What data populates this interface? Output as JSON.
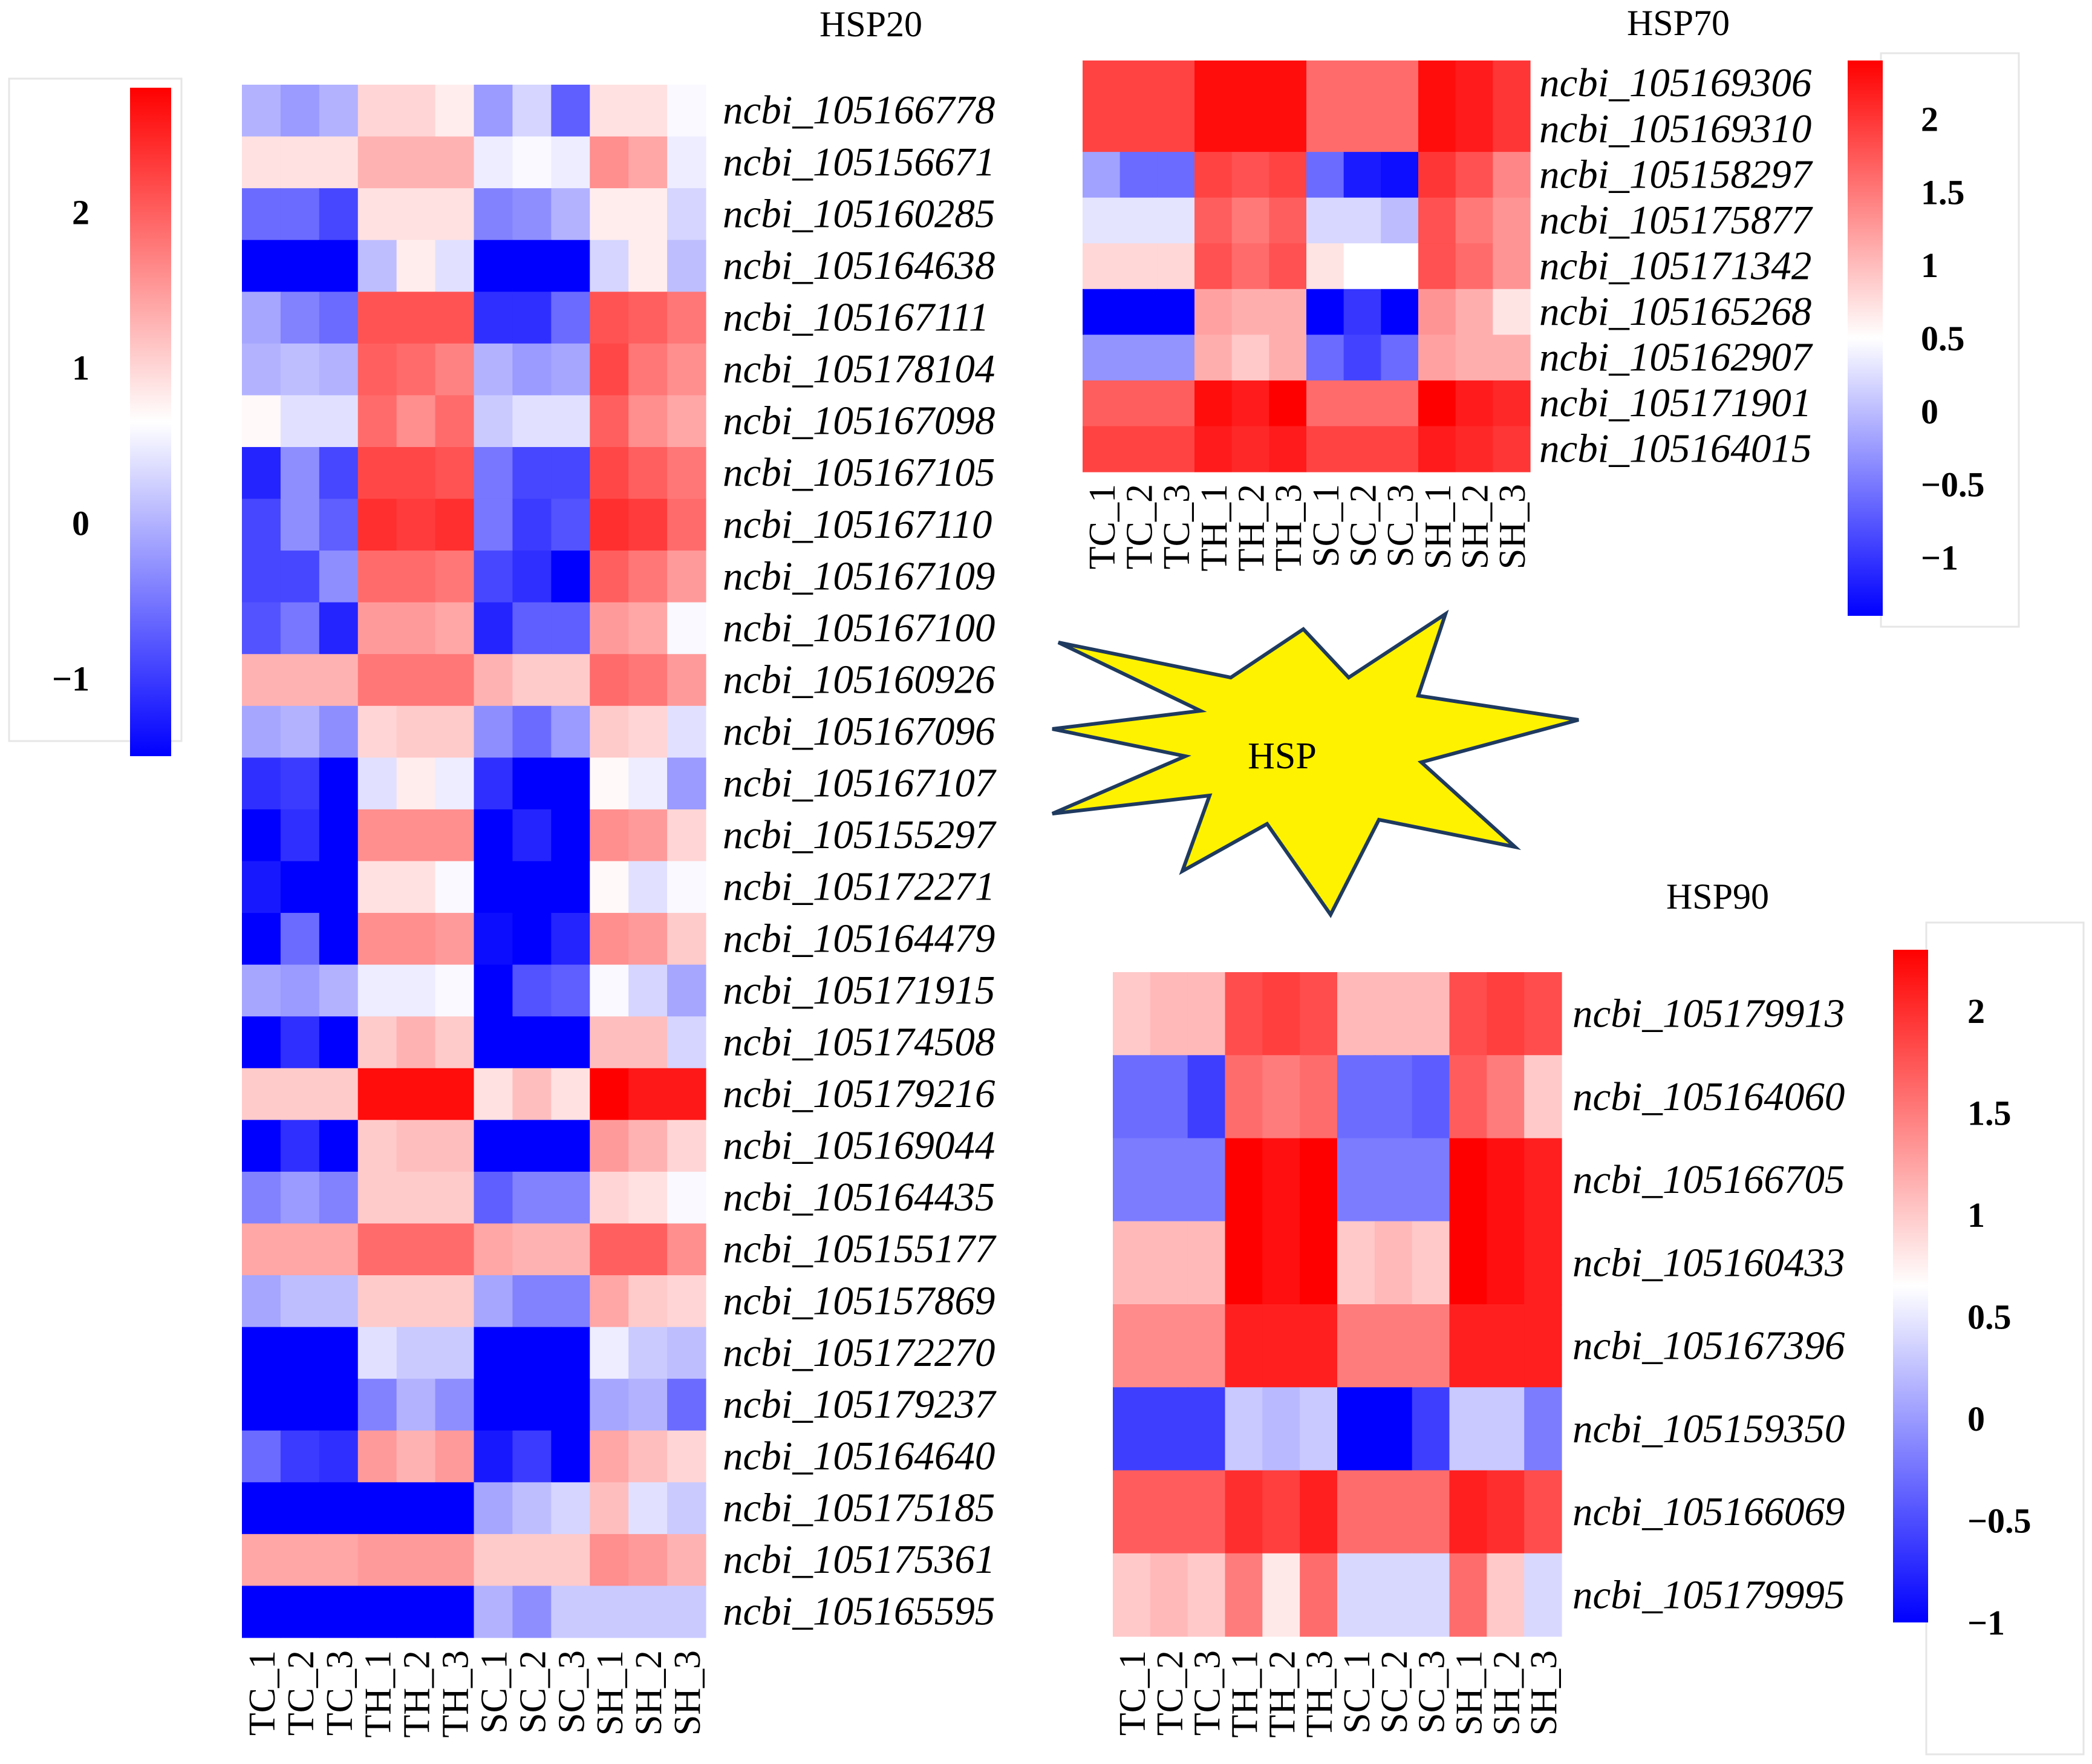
{
  "palette": {
    "low": "#0000ff",
    "mid": "#ffffff",
    "high": "#ff0000",
    "burst_fill": "#fff200",
    "burst_stroke": "#1f3a5f"
  },
  "center_label": "HSP",
  "chart_data": [
    {
      "type": "heatmap",
      "title": "HSP20",
      "columns": [
        "TC_1",
        "TC_2",
        "TC_3",
        "TH_1",
        "TH_2",
        "TH_3",
        "SC_1",
        "SC_2",
        "SC_3",
        "SH_1",
        "SH_2",
        "SH_3"
      ],
      "colorbar": {
        "vmin": -1.5,
        "vmax": 2.8,
        "ticks": [
          2,
          1,
          0,
          -1
        ],
        "tick_labels": [
          "2",
          "1",
          "0",
          "−1"
        ],
        "placement": "left"
      },
      "rows": [
        {
          "label": "ncbi_105166778",
          "values": [
            0.0,
            -0.2,
            0.0,
            1.0,
            1.0,
            0.8,
            -0.2,
            0.3,
            -0.7,
            0.9,
            0.9,
            0.6
          ]
        },
        {
          "label": "ncbi_105156671",
          "values": [
            0.9,
            0.9,
            0.9,
            1.3,
            1.3,
            1.3,
            0.5,
            0.6,
            0.5,
            1.6,
            1.4,
            0.5
          ]
        },
        {
          "label": "ncbi_105160285",
          "values": [
            -0.6,
            -0.6,
            -0.9,
            0.9,
            0.9,
            0.9,
            -0.4,
            -0.3,
            0.0,
            0.8,
            0.8,
            0.3
          ]
        },
        {
          "label": "ncbi_105164638",
          "values": [
            -1.5,
            -1.5,
            -1.5,
            0.1,
            0.8,
            0.4,
            -1.5,
            -1.5,
            -1.5,
            0.3,
            0.8,
            0.1
          ]
        },
        {
          "label": "ncbi_105167111",
          "values": [
            -0.1,
            -0.4,
            -0.6,
            2.1,
            2.1,
            2.1,
            -1.1,
            -1.1,
            -0.6,
            2.1,
            2.0,
            1.8
          ]
        },
        {
          "label": "ncbi_105178104",
          "values": [
            0.0,
            0.1,
            0.0,
            2.0,
            1.9,
            1.7,
            0.0,
            -0.2,
            -0.1,
            2.2,
            1.8,
            1.6
          ]
        },
        {
          "label": "ncbi_105167098",
          "values": [
            0.7,
            0.4,
            0.4,
            1.9,
            1.6,
            1.9,
            0.2,
            0.4,
            0.4,
            2.0,
            1.6,
            1.4
          ]
        },
        {
          "label": "ncbi_105167105",
          "values": [
            -1.2,
            -0.3,
            -0.9,
            2.2,
            2.2,
            2.1,
            -0.5,
            -0.9,
            -0.9,
            2.2,
            2.0,
            1.8
          ]
        },
        {
          "label": "ncbi_105167110",
          "values": [
            -0.9,
            -0.3,
            -0.7,
            2.4,
            2.3,
            2.4,
            -0.5,
            -1.0,
            -0.8,
            2.4,
            2.3,
            1.9
          ]
        },
        {
          "label": "ncbi_105167109",
          "values": [
            -0.9,
            -0.9,
            -0.3,
            1.9,
            1.9,
            1.8,
            -0.9,
            -1.1,
            -1.5,
            2.0,
            1.8,
            1.5
          ]
        },
        {
          "label": "ncbi_105167100",
          "values": [
            -0.8,
            -0.5,
            -1.2,
            1.5,
            1.5,
            1.4,
            -1.2,
            -0.7,
            -0.7,
            1.5,
            1.4,
            0.6
          ]
        },
        {
          "label": "ncbi_105160926",
          "values": [
            1.3,
            1.3,
            1.3,
            1.8,
            1.8,
            1.8,
            1.3,
            1.1,
            1.1,
            1.9,
            1.8,
            1.5
          ]
        },
        {
          "label": "ncbi_105167096",
          "values": [
            -0.1,
            0.0,
            -0.3,
            1.0,
            1.1,
            1.1,
            -0.3,
            -0.6,
            -0.2,
            1.1,
            1.0,
            0.4
          ]
        },
        {
          "label": "ncbi_105167107",
          "values": [
            -1.1,
            -1.0,
            -1.5,
            0.4,
            0.8,
            0.5,
            -1.1,
            -1.5,
            -1.5,
            0.7,
            0.5,
            -0.2
          ]
        },
        {
          "label": "ncbi_105155297",
          "values": [
            -1.5,
            -1.1,
            -1.5,
            1.6,
            1.6,
            1.6,
            -1.5,
            -1.2,
            -1.5,
            1.6,
            1.5,
            1.0
          ]
        },
        {
          "label": "ncbi_105172271",
          "values": [
            -1.3,
            -1.5,
            -1.5,
            0.9,
            0.9,
            0.6,
            -1.5,
            -1.5,
            -1.5,
            0.7,
            0.4,
            0.6
          ]
        },
        {
          "label": "ncbi_105164479",
          "values": [
            -1.5,
            -0.6,
            -1.5,
            1.6,
            1.6,
            1.5,
            -1.4,
            -1.5,
            -1.2,
            1.6,
            1.5,
            1.1
          ]
        },
        {
          "label": "ncbi_105171915",
          "values": [
            -0.1,
            -0.2,
            0.0,
            0.5,
            0.5,
            0.6,
            -1.5,
            -0.8,
            -0.7,
            0.6,
            0.3,
            -0.1
          ]
        },
        {
          "label": "ncbi_105174508",
          "values": [
            -1.5,
            -1.1,
            -1.5,
            1.1,
            1.3,
            1.1,
            -1.5,
            -1.5,
            -1.5,
            1.2,
            1.2,
            0.3
          ]
        },
        {
          "label": "ncbi_105179216",
          "values": [
            1.1,
            1.1,
            1.1,
            2.7,
            2.7,
            2.7,
            0.9,
            1.2,
            0.9,
            2.8,
            2.6,
            2.6
          ]
        },
        {
          "label": "ncbi_105169044",
          "values": [
            -1.5,
            -1.1,
            -1.5,
            1.1,
            1.2,
            1.2,
            -1.5,
            -1.5,
            -1.5,
            1.5,
            1.3,
            1.0
          ]
        },
        {
          "label": "ncbi_105164435",
          "values": [
            -0.4,
            -0.2,
            -0.4,
            1.1,
            1.1,
            1.1,
            -0.7,
            -0.4,
            -0.4,
            1.0,
            0.9,
            0.6
          ]
        },
        {
          "label": "ncbi_105155177",
          "values": [
            1.4,
            1.4,
            1.4,
            1.9,
            1.9,
            1.9,
            1.4,
            1.3,
            1.3,
            2.0,
            2.0,
            1.6
          ]
        },
        {
          "label": "ncbi_105157869",
          "values": [
            -0.1,
            0.1,
            0.1,
            1.1,
            1.1,
            1.1,
            -0.1,
            -0.4,
            -0.4,
            1.4,
            1.1,
            1.0
          ]
        },
        {
          "label": "ncbi_105172270",
          "values": [
            -1.5,
            -1.5,
            -1.5,
            0.4,
            0.2,
            0.2,
            -1.5,
            -1.5,
            -1.5,
            0.5,
            0.2,
            0.1
          ]
        },
        {
          "label": "ncbi_105179237",
          "values": [
            -1.5,
            -1.5,
            -1.5,
            -0.4,
            0.0,
            -0.3,
            -1.5,
            -1.5,
            -1.5,
            -0.1,
            0.0,
            -0.6
          ]
        },
        {
          "label": "ncbi_105164640",
          "values": [
            -0.6,
            -1.0,
            -1.1,
            1.5,
            1.3,
            1.5,
            -1.3,
            -1.0,
            -1.5,
            1.4,
            1.2,
            1.0
          ]
        },
        {
          "label": "ncbi_105175185",
          "values": [
            -1.5,
            -1.5,
            -1.5,
            -1.5,
            -1.5,
            -1.5,
            -0.1,
            0.1,
            0.3,
            1.2,
            0.4,
            0.2
          ]
        },
        {
          "label": "ncbi_105175361",
          "values": [
            1.4,
            1.4,
            1.4,
            1.5,
            1.5,
            1.5,
            1.1,
            1.1,
            1.1,
            1.6,
            1.5,
            1.3
          ]
        },
        {
          "label": "ncbi_105165595",
          "values": [
            -1.5,
            -1.5,
            -1.5,
            -1.5,
            -1.5,
            -1.5,
            0.0,
            -0.3,
            0.2,
            0.2,
            0.2,
            0.2
          ]
        }
      ]
    },
    {
      "type": "heatmap",
      "title": "HSP70",
      "columns": [
        "TC_1",
        "TC_2",
        "TC_3",
        "TH_1",
        "TH_2",
        "TH_3",
        "SC_1",
        "SC_2",
        "SC_3",
        "SH_1",
        "SH_2",
        "SH_3"
      ],
      "colorbar": {
        "vmin": -1.4,
        "vmax": 2.4,
        "ticks": [
          2,
          1.5,
          1,
          0.5,
          0,
          -0.5,
          -1
        ],
        "tick_labels": [
          "2",
          "1.5",
          "1",
          "0.5",
          "0",
          "−0.5",
          "−1"
        ],
        "placement": "right"
      },
      "rows": [
        {
          "label": "ncbi_105169306",
          "values": [
            1.9,
            1.9,
            1.9,
            2.3,
            2.3,
            2.3,
            1.6,
            1.6,
            1.6,
            2.3,
            2.2,
            2.0
          ]
        },
        {
          "label": "ncbi_105169310",
          "values": [
            1.9,
            1.9,
            1.9,
            2.3,
            2.3,
            2.3,
            1.6,
            1.6,
            1.6,
            2.3,
            2.2,
            2.0
          ]
        },
        {
          "label": "ncbi_105158297",
          "values": [
            -0.2,
            -0.6,
            -0.6,
            1.9,
            1.8,
            1.9,
            -0.6,
            -1.2,
            -1.3,
            2.0,
            1.8,
            1.4
          ]
        },
        {
          "label": "ncbi_105175877",
          "values": [
            0.3,
            0.3,
            0.3,
            1.7,
            1.5,
            1.7,
            0.2,
            0.2,
            0.0,
            1.8,
            1.5,
            1.3
          ]
        },
        {
          "label": "ncbi_105171342",
          "values": [
            0.8,
            0.8,
            0.8,
            1.8,
            1.6,
            1.8,
            0.7,
            0.5,
            0.5,
            1.8,
            1.6,
            1.3
          ]
        },
        {
          "label": "ncbi_105165268",
          "values": [
            -1.4,
            -1.4,
            -1.4,
            1.2,
            1.1,
            1.1,
            -1.4,
            -1.0,
            -1.4,
            1.3,
            1.1,
            0.7
          ]
        },
        {
          "label": "ncbi_105162907",
          "values": [
            -0.3,
            -0.3,
            -0.3,
            1.1,
            0.9,
            1.1,
            -0.6,
            -0.9,
            -0.6,
            1.2,
            1.1,
            1.1
          ]
        },
        {
          "label": "ncbi_105171901",
          "values": [
            1.7,
            1.7,
            1.7,
            2.3,
            2.2,
            2.4,
            1.6,
            1.6,
            1.6,
            2.4,
            2.2,
            2.1
          ]
        },
        {
          "label": "ncbi_105164015",
          "values": [
            1.9,
            1.9,
            1.9,
            2.2,
            2.1,
            2.2,
            1.9,
            1.9,
            1.9,
            2.2,
            2.1,
            2.0
          ]
        }
      ]
    },
    {
      "type": "heatmap",
      "title": "HSP90",
      "columns": [
        "TC_1",
        "TC_2",
        "TC_3",
        "TH_1",
        "TH_2",
        "TH_3",
        "SC_1",
        "SC_2",
        "SC_3",
        "SH_1",
        "SH_2",
        "SH_3"
      ],
      "colorbar": {
        "vmin": -1.0,
        "vmax": 2.3,
        "ticks": [
          2,
          1.5,
          1,
          0.5,
          0,
          -0.5,
          -1
        ],
        "tick_labels": [
          "2",
          "1.5",
          "1",
          "0.5",
          "0",
          "−0.5",
          "−1"
        ],
        "placement": "right"
      },
      "rows": [
        {
          "label": "ncbi_105179913",
          "values": [
            1.0,
            1.1,
            1.1,
            1.8,
            1.9,
            1.8,
            1.1,
            1.1,
            1.1,
            1.8,
            1.9,
            1.8
          ]
        },
        {
          "label": "ncbi_105164060",
          "values": [
            -0.3,
            -0.3,
            -0.6,
            1.6,
            1.5,
            1.6,
            -0.3,
            -0.3,
            -0.4,
            1.7,
            1.5,
            1.0
          ]
        },
        {
          "label": "ncbi_105166705",
          "values": [
            -0.2,
            -0.2,
            -0.2,
            2.3,
            2.2,
            2.3,
            -0.2,
            -0.2,
            -0.2,
            2.3,
            2.2,
            2.1
          ]
        },
        {
          "label": "ncbi_105160433",
          "values": [
            1.1,
            1.1,
            1.1,
            2.3,
            2.2,
            2.3,
            1.0,
            1.1,
            1.0,
            2.3,
            2.2,
            2.1
          ]
        },
        {
          "label": "ncbi_105167396",
          "values": [
            1.4,
            1.4,
            1.4,
            2.1,
            2.1,
            2.1,
            1.5,
            1.5,
            1.5,
            2.1,
            2.1,
            2.1
          ]
        },
        {
          "label": "ncbi_105159350",
          "values": [
            -0.6,
            -0.6,
            -0.6,
            0.3,
            0.2,
            0.3,
            -1.0,
            -1.0,
            -0.6,
            0.3,
            0.3,
            -0.2
          ]
        },
        {
          "label": "ncbi_105166069",
          "values": [
            1.7,
            1.7,
            1.7,
            2.0,
            1.9,
            2.1,
            1.6,
            1.6,
            1.6,
            2.1,
            2.0,
            1.8
          ]
        },
        {
          "label": "ncbi_105179995",
          "values": [
            1.0,
            1.1,
            1.0,
            1.5,
            0.8,
            1.6,
            0.4,
            0.4,
            0.4,
            1.6,
            1.0,
            0.4
          ]
        }
      ]
    }
  ]
}
